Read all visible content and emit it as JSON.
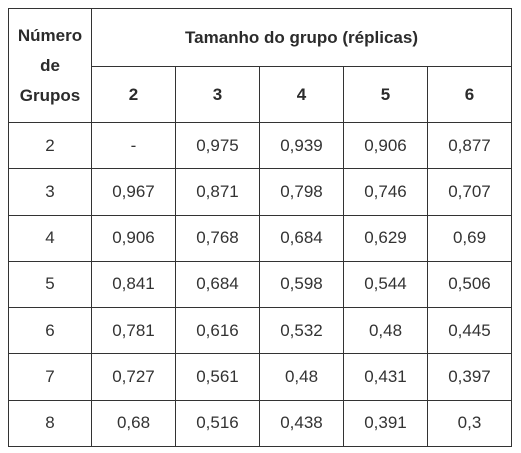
{
  "table": {
    "corner_header_lines": [
      "Número",
      "de",
      "Grupos"
    ],
    "group_header": "Tamanho do grupo (réplicas)",
    "column_headers": [
      "2",
      "3",
      "4",
      "5",
      "6"
    ],
    "rows": [
      {
        "label": "2",
        "cells": [
          "-",
          "0,975",
          "0,939",
          "0,906",
          "0,877"
        ]
      },
      {
        "label": "3",
        "cells": [
          "0,967",
          "0,871",
          "0,798",
          "0,746",
          "0,707"
        ]
      },
      {
        "label": "4",
        "cells": [
          "0,906",
          "0,768",
          "0,684",
          "0,629",
          "0,69"
        ]
      },
      {
        "label": "5",
        "cells": [
          "0,841",
          "0,684",
          "0,598",
          "0,544",
          "0,506"
        ]
      },
      {
        "label": "6",
        "cells": [
          "0,781",
          "0,616",
          "0,532",
          "0,48",
          "0,445"
        ]
      },
      {
        "label": "7",
        "cells": [
          "0,727",
          "0,561",
          "0,48",
          "0,431",
          "0,397"
        ]
      },
      {
        "label": "8",
        "cells": [
          "0,68",
          "0,516",
          "0,438",
          "0,391",
          "0,3"
        ]
      }
    ]
  }
}
